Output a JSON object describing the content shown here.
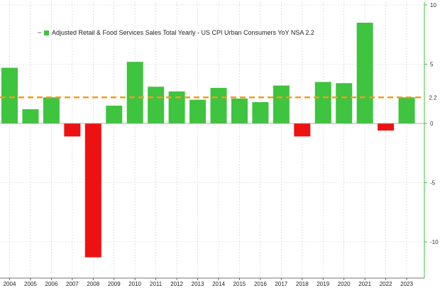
{
  "chart_data": {
    "type": "bar",
    "title": "",
    "xlabel": "",
    "ylabel": "",
    "categories": [
      "2004",
      "2005",
      "2006",
      "2007",
      "2008",
      "2009",
      "2010",
      "2011",
      "2012",
      "2013",
      "2014",
      "2015",
      "2016",
      "2017",
      "2018",
      "2019",
      "2020",
      "2021",
      "2022",
      "2023"
    ],
    "series": [
      {
        "name": "Adjusted Retail & Food Services Sales Total Yearly - US CPI Urban Consumers YoY NSA",
        "values": [
          4.7,
          1.2,
          2.2,
          -1.1,
          -11.3,
          1.5,
          5.2,
          3.1,
          2.7,
          2.0,
          3.0,
          2.1,
          1.8,
          3.2,
          -1.1,
          3.5,
          3.4,
          8.5,
          -0.6,
          2.2
        ]
      }
    ],
    "reference_line": {
      "value": 2.2,
      "label": "2.2",
      "color": "#f39c1e",
      "style": "dashed"
    },
    "ylim": [
      -13,
      10
    ],
    "yticks": [
      10,
      5,
      0,
      -5,
      -10
    ],
    "ytick_labels": [
      "10",
      "5",
      "0",
      "-5",
      "-10"
    ],
    "y_axis_side": "right",
    "legend": {
      "position": "top-left",
      "text": "Adjusted Retail & Food Services Sales Total Yearly - US CPI Urban Consumers YoY NSA 2.2"
    },
    "grid": true,
    "colors": {
      "positive": "#3ec43e",
      "negative": "#ee1111",
      "grid": "#cccccc",
      "axis": "#3ec43e"
    }
  }
}
